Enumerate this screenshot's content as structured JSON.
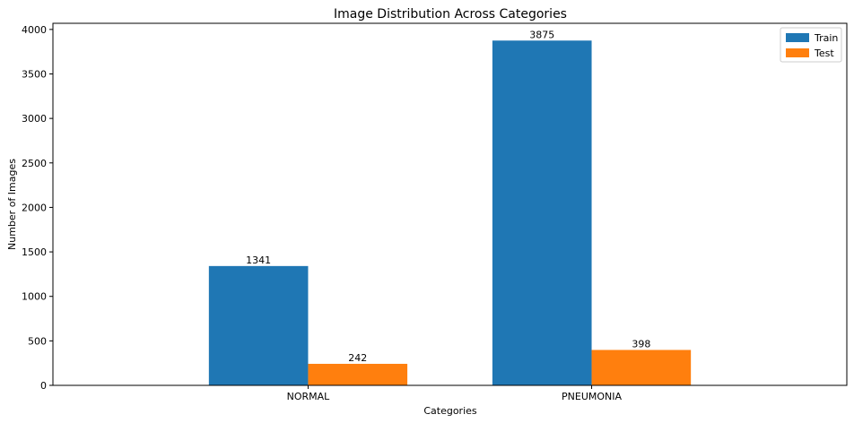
{
  "chart_data": {
    "type": "bar",
    "title": "Image Distribution Across Categories",
    "xlabel": "Categories",
    "ylabel": "Number of Images",
    "categories": [
      "NORMAL",
      "PNEUMONIA"
    ],
    "series": [
      {
        "name": "Train",
        "values": [
          1341,
          3875
        ],
        "color": "#1f77b4"
      },
      {
        "name": "Test",
        "values": [
          242,
          398
        ],
        "color": "#ff7f0e"
      }
    ],
    "ylim": [
      0,
      4069
    ],
    "yticks": [
      0,
      500,
      1000,
      1500,
      2000,
      2500,
      3000,
      3500,
      4000
    ],
    "legend_position": "top-right",
    "grid": false,
    "show_data_labels": true
  }
}
